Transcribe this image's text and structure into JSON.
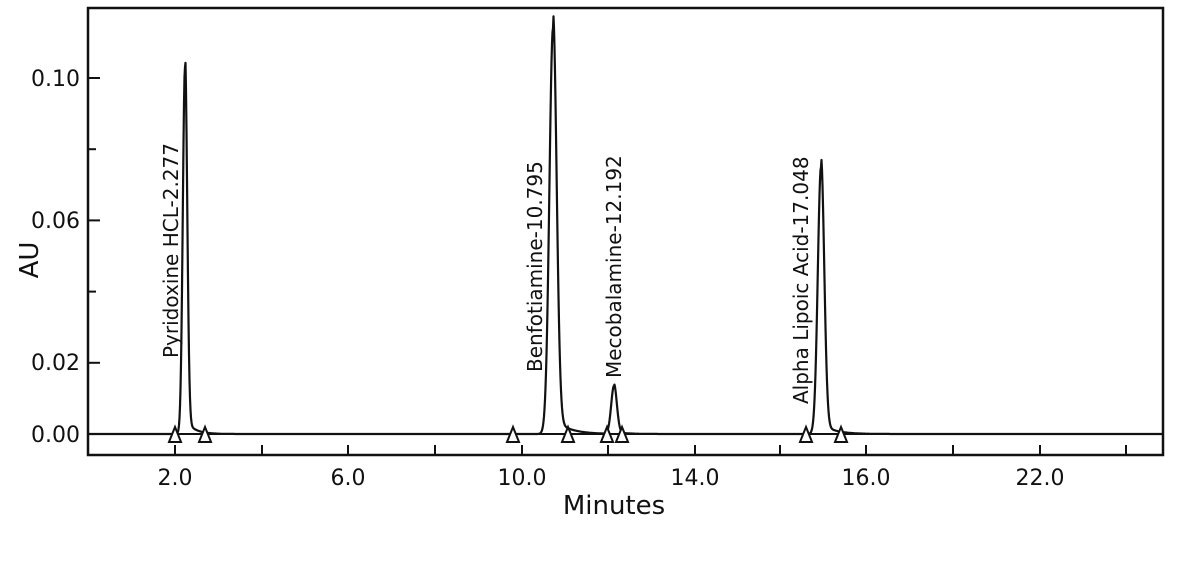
{
  "chart_data": {
    "type": "line",
    "title": "",
    "xlabel": "Minutes",
    "ylabel": "AU",
    "x_tick_labels": [
      "2.0",
      "6.0",
      "10.0",
      "14.0",
      "16.0",
      "22.0"
    ],
    "y_tick_labels": [
      "0.00",
      "0.02",
      "0.06",
      "0.10"
    ],
    "ylim": [
      -0.003,
      0.118
    ],
    "grid": false,
    "peaks": [
      {
        "name": "Pyridoxine HCL",
        "label": "Pyridoxine  HCL-2.277",
        "retention_time": 2.277,
        "height": 0.103
      },
      {
        "name": "Benfotiamine",
        "label": "Benfotiamine-10.795",
        "retention_time": 10.795,
        "height": 0.114
      },
      {
        "name": "Mecobalamine",
        "label": "Mecobalamine-12.192",
        "retention_time": 12.192,
        "height": 0.0135
      },
      {
        "name": "Alpha Lipoic Acid",
        "label": "Alpha Lipoic Acid-17.048",
        "retention_time": 17.048,
        "height": 0.075
      }
    ]
  }
}
